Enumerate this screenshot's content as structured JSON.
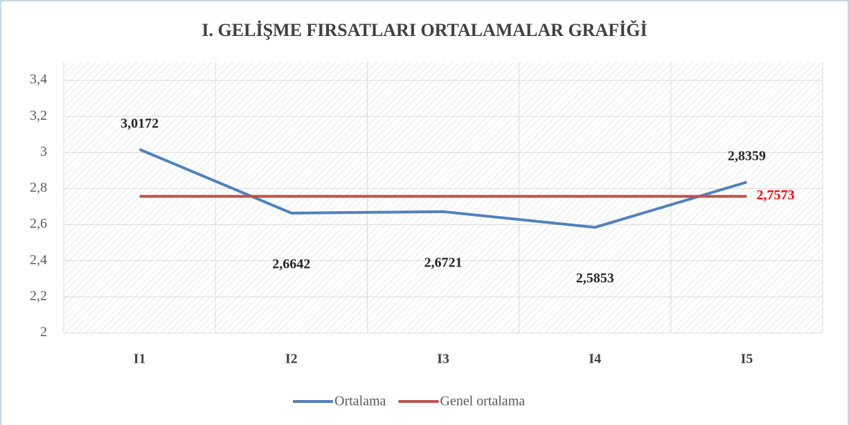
{
  "chart_data": {
    "type": "line",
    "title": "I. GELİŞME FIRSATLARI ORTALAMALAR GRAFİĞİ",
    "categories": [
      "I1",
      "I2",
      "I3",
      "I4",
      "I5"
    ],
    "series": [
      {
        "name": "Ortalama",
        "color": "#4f81bd",
        "label_color": "#262626",
        "values": [
          3.0172,
          2.6642,
          2.6721,
          2.5853,
          2.8359
        ],
        "value_labels": [
          "3,0172",
          "2,6642",
          "2,6721",
          "2,5853",
          "2,8359"
        ]
      },
      {
        "name": "Genel ortalama",
        "color": "#c0504d",
        "label_color": "#ff0000",
        "values": [
          2.7573,
          2.7573,
          2.7573,
          2.7573,
          2.7573
        ],
        "value_labels": [
          null,
          null,
          null,
          null,
          "2,7573"
        ]
      }
    ],
    "ylim": [
      2,
      3.5
    ],
    "yticks": [
      2,
      {
        "value": 2.2,
        "label": "2,2"
      },
      {
        "value": 2.4,
        "label": "2,4"
      },
      {
        "value": 2.6,
        "label": "2,6"
      },
      {
        "value": 2.8,
        "label": "2,8"
      },
      3,
      {
        "value": 3.2,
        "label": "3,2"
      },
      {
        "value": 3.4,
        "label": "3,4"
      }
    ],
    "grid": true,
    "legend": "bottom"
  }
}
